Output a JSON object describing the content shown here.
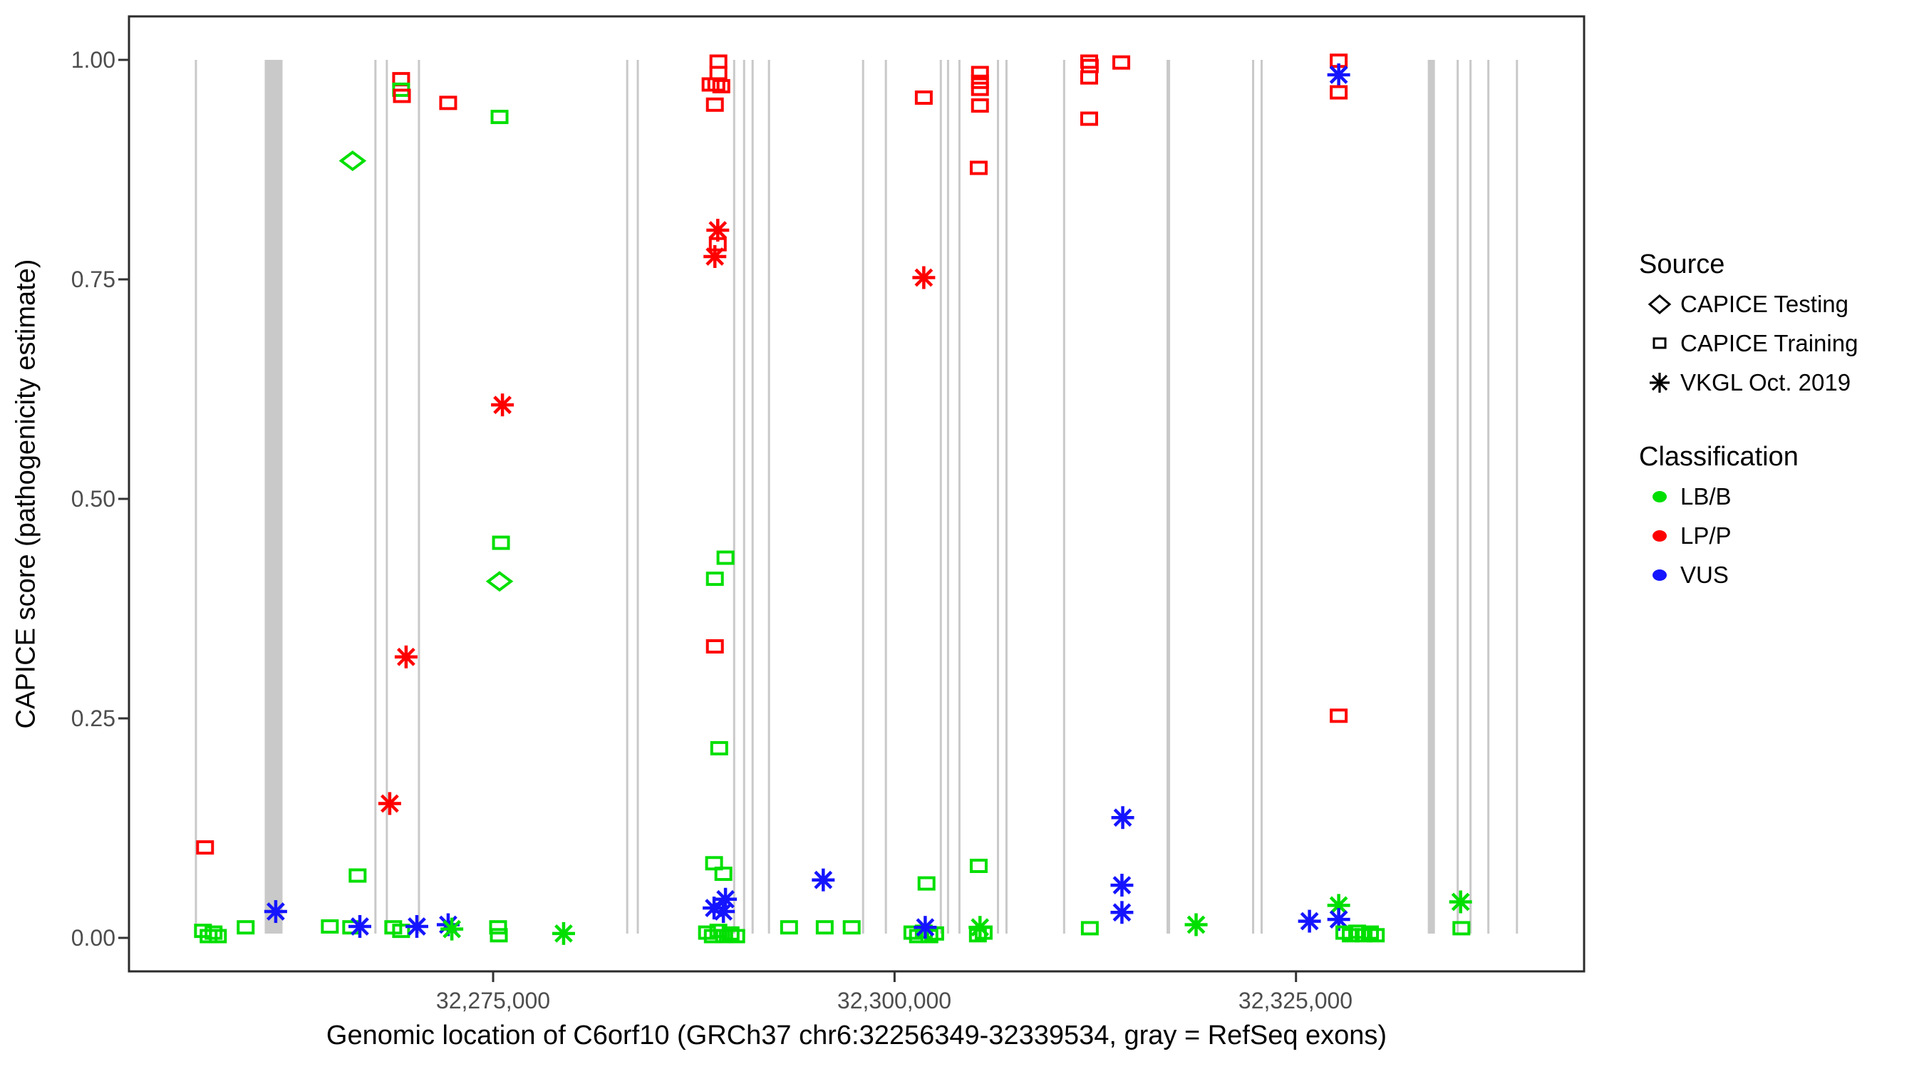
{
  "legend": {
    "source_title": "Source",
    "source_items": [
      {
        "label": "CAPICE Testing",
        "shape": "diamond"
      },
      {
        "label": "CAPICE Training",
        "shape": "square"
      },
      {
        "label": "VKGL Oct. 2019",
        "shape": "asterisk"
      }
    ],
    "classification_title": "Classification",
    "classification_items": [
      {
        "label": "LB/B",
        "class": "LB/B"
      },
      {
        "label": "LP/P",
        "class": "LP/P"
      },
      {
        "label": "VUS",
        "class": "VUS"
      }
    ]
  },
  "colors": {
    "LB/B": "#00DF00",
    "LP/P": "#FF0000",
    "VUS": "#1515FF",
    "exon": "#C9C9C9",
    "axis_text": "#4d4d4d",
    "border": "#2b2b2b"
  },
  "chart_data": {
    "type": "scatter",
    "xlabel": "Genomic location of C6orf10 (GRCh37 chr6:32256349-32339534, gray = RefSeq exons)",
    "ylabel": "CAPICE score (pathogenicity estimate)",
    "x_axis": {
      "ticks": [
        32275000,
        32300000,
        32325000
      ],
      "tick_labels": [
        "32,275,000",
        "32,300,000",
        "32,325,000"
      ],
      "range": [
        32252322,
        32342942
      ]
    },
    "y_axis": {
      "ticks": [
        0,
        0.25,
        0.5,
        0.75,
        1
      ],
      "tick_labels": [
        "0.00",
        "0.25",
        "0.50",
        "0.75",
        "1.00"
      ],
      "range": [
        0,
        1
      ]
    },
    "grid": false,
    "legend_position": "right",
    "exon_note": "gray = RefSeq exons",
    "exons": [
      {
        "pos": 32256490,
        "w": 3
      },
      {
        "pos": 32261330,
        "w": 25
      },
      {
        "pos": 32267670,
        "w": 3
      },
      {
        "pos": 32268380,
        "w": 3
      },
      {
        "pos": 32270380,
        "w": 3
      },
      {
        "pos": 32283350,
        "w": 3
      },
      {
        "pos": 32284010,
        "w": 3
      },
      {
        "pos": 32290010,
        "w": 3
      },
      {
        "pos": 32290630,
        "w": 3
      },
      {
        "pos": 32291160,
        "w": 3
      },
      {
        "pos": 32292180,
        "w": 3
      },
      {
        "pos": 32298040,
        "w": 3
      },
      {
        "pos": 32299460,
        "w": 3
      },
      {
        "pos": 32302880,
        "w": 3
      },
      {
        "pos": 32303330,
        "w": 3
      },
      {
        "pos": 32304040,
        "w": 3
      },
      {
        "pos": 32306440,
        "w": 3
      },
      {
        "pos": 32306970,
        "w": 3
      },
      {
        "pos": 32310560,
        "w": 3
      },
      {
        "pos": 32317050,
        "w": 5
      },
      {
        "pos": 32322330,
        "w": 3
      },
      {
        "pos": 32322860,
        "w": 3
      },
      {
        "pos": 32333430,
        "w": 10
      },
      {
        "pos": 32335070,
        "w": 3
      },
      {
        "pos": 32335870,
        "w": 3
      },
      {
        "pos": 32336980,
        "w": 3
      },
      {
        "pos": 32338760,
        "w": 3
      }
    ],
    "points": [
      {
        "pos": 32257060,
        "score": 0.103,
        "source": "CAPICE Training",
        "class": "LP/P"
      },
      {
        "pos": 32256930,
        "score": 0.008,
        "source": "CAPICE Training",
        "class": "LB/B"
      },
      {
        "pos": 32257280,
        "score": 0.002,
        "source": "CAPICE Training",
        "class": "LB/B"
      },
      {
        "pos": 32257590,
        "score": 0.006,
        "source": "CAPICE Training",
        "class": "LB/B"
      },
      {
        "pos": 32257860,
        "score": 0.002,
        "source": "CAPICE Training",
        "class": "LB/B"
      },
      {
        "pos": 32259590,
        "score": 0.012,
        "source": "CAPICE Training",
        "class": "LB/B"
      },
      {
        "pos": 32261460,
        "score": 0.03,
        "source": "VKGL Oct. 2019",
        "class": "VUS"
      },
      {
        "pos": 32264830,
        "score": 0.013,
        "source": "CAPICE Training",
        "class": "LB/B"
      },
      {
        "pos": 32266160,
        "score": 0.012,
        "source": "CAPICE Training",
        "class": "LB/B"
      },
      {
        "pos": 32266560,
        "score": 0.071,
        "source": "CAPICE Training",
        "class": "LB/B"
      },
      {
        "pos": 32266700,
        "score": 0.013,
        "source": "VKGL Oct. 2019",
        "class": "VUS"
      },
      {
        "pos": 32266250,
        "score": 0.885,
        "source": "CAPICE Testing",
        "class": "LB/B"
      },
      {
        "pos": 32268780,
        "score": 0.012,
        "source": "CAPICE Training",
        "class": "LB/B"
      },
      {
        "pos": 32269270,
        "score": 0.008,
        "source": "CAPICE Training",
        "class": "LB/B"
      },
      {
        "pos": 32269270,
        "score": 0.978,
        "source": "CAPICE Training",
        "class": "LP/P"
      },
      {
        "pos": 32269270,
        "score": 0.966,
        "source": "CAPICE Training",
        "class": "LB/B"
      },
      {
        "pos": 32269320,
        "score": 0.959,
        "source": "CAPICE Training",
        "class": "LP/P"
      },
      {
        "pos": 32268560,
        "score": 0.153,
        "source": "VKGL Oct. 2019",
        "class": "LP/P"
      },
      {
        "pos": 32269580,
        "score": 0.32,
        "source": "VKGL Oct. 2019",
        "class": "LP/P"
      },
      {
        "pos": 32270250,
        "score": 0.013,
        "source": "VKGL Oct. 2019",
        "class": "VUS"
      },
      {
        "pos": 32272200,
        "score": 0.951,
        "source": "CAPICE Training",
        "class": "LP/P"
      },
      {
        "pos": 32272200,
        "score": 0.015,
        "source": "VKGL Oct. 2019",
        "class": "VUS"
      },
      {
        "pos": 32272430,
        "score": 0.01,
        "source": "VKGL Oct. 2019",
        "class": "LB/B"
      },
      {
        "pos": 32275310,
        "score": 0.012,
        "source": "CAPICE Training",
        "class": "LB/B"
      },
      {
        "pos": 32275355,
        "score": 0.003,
        "source": "CAPICE Training",
        "class": "LB/B"
      },
      {
        "pos": 32275400,
        "score": 0.935,
        "source": "CAPICE Training",
        "class": "LB/B"
      },
      {
        "pos": 32275490,
        "score": 0.45,
        "source": "CAPICE Training",
        "class": "LB/B"
      },
      {
        "pos": 32275400,
        "score": 0.406,
        "source": "CAPICE Testing",
        "class": "LB/B"
      },
      {
        "pos": 32275580,
        "score": 0.607,
        "source": "VKGL Oct. 2019",
        "class": "LP/P"
      },
      {
        "pos": 32279390,
        "score": 0.005,
        "source": "VKGL Oct. 2019",
        "class": "LB/B"
      },
      {
        "pos": 32289030,
        "score": 0.998,
        "source": "CAPICE Training",
        "class": "LP/P"
      },
      {
        "pos": 32289030,
        "score": 0.985,
        "source": "CAPICE Training",
        "class": "LP/P"
      },
      {
        "pos": 32288540,
        "score": 0.972,
        "source": "CAPICE Training",
        "class": "LP/P"
      },
      {
        "pos": 32288900,
        "score": 0.972,
        "source": "CAPICE Training",
        "class": "LP/P"
      },
      {
        "pos": 32289210,
        "score": 0.97,
        "source": "CAPICE Training",
        "class": "LP/P"
      },
      {
        "pos": 32288810,
        "score": 0.949,
        "source": "CAPICE Training",
        "class": "LP/P"
      },
      {
        "pos": 32288990,
        "score": 0.806,
        "source": "VKGL Oct. 2019",
        "class": "LP/P"
      },
      {
        "pos": 32288990,
        "score": 0.79,
        "source": "CAPICE Training",
        "class": "LP/P"
      },
      {
        "pos": 32288810,
        "score": 0.776,
        "source": "VKGL Oct. 2019",
        "class": "LP/P"
      },
      {
        "pos": 32289470,
        "score": 0.433,
        "source": "CAPICE Training",
        "class": "LB/B"
      },
      {
        "pos": 32288810,
        "score": 0.409,
        "source": "CAPICE Training",
        "class": "LB/B"
      },
      {
        "pos": 32288810,
        "score": 0.332,
        "source": "CAPICE Training",
        "class": "LP/P"
      },
      {
        "pos": 32289080,
        "score": 0.216,
        "source": "CAPICE Training",
        "class": "LB/B"
      },
      {
        "pos": 32288760,
        "score": 0.085,
        "source": "CAPICE Training",
        "class": "LB/B"
      },
      {
        "pos": 32289340,
        "score": 0.073,
        "source": "CAPICE Training",
        "class": "LB/B"
      },
      {
        "pos": 32289470,
        "score": 0.044,
        "source": "VKGL Oct. 2019",
        "class": "VUS"
      },
      {
        "pos": 32288760,
        "score": 0.034,
        "source": "VKGL Oct. 2019",
        "class": "VUS"
      },
      {
        "pos": 32289340,
        "score": 0.03,
        "source": "VKGL Oct. 2019",
        "class": "VUS"
      },
      {
        "pos": 32288320,
        "score": 0.006,
        "source": "CAPICE Training",
        "class": "LB/B"
      },
      {
        "pos": 32288680,
        "score": 0.002,
        "source": "CAPICE Training",
        "class": "LB/B"
      },
      {
        "pos": 32289030,
        "score": 0.008,
        "source": "CAPICE Training",
        "class": "LB/B"
      },
      {
        "pos": 32289390,
        "score": 0.002,
        "source": "CAPICE Training",
        "class": "LB/B"
      },
      {
        "pos": 32289790,
        "score": 0.005,
        "source": "CAPICE Training",
        "class": "LB/B"
      },
      {
        "pos": 32290140,
        "score": 0.002,
        "source": "CAPICE Training",
        "class": "LB/B"
      },
      {
        "pos": 32293430,
        "score": 0.012,
        "source": "CAPICE Training",
        "class": "LB/B"
      },
      {
        "pos": 32295560,
        "score": 0.066,
        "source": "VKGL Oct. 2019",
        "class": "VUS"
      },
      {
        "pos": 32295650,
        "score": 0.012,
        "source": "CAPICE Training",
        "class": "LB/B"
      },
      {
        "pos": 32297330,
        "score": 0.012,
        "source": "CAPICE Training",
        "class": "LB/B"
      },
      {
        "pos": 32301110,
        "score": 0.006,
        "source": "CAPICE Training",
        "class": "LB/B"
      },
      {
        "pos": 32301460,
        "score": 0.002,
        "source": "CAPICE Training",
        "class": "LB/B"
      },
      {
        "pos": 32301820,
        "score": 0.007,
        "source": "CAPICE Training",
        "class": "LB/B"
      },
      {
        "pos": 32302170,
        "score": 0.002,
        "source": "CAPICE Training",
        "class": "LB/B"
      },
      {
        "pos": 32302530,
        "score": 0.005,
        "source": "CAPICE Training",
        "class": "LB/B"
      },
      {
        "pos": 32301910,
        "score": 0.012,
        "source": "VKGL Oct. 2019",
        "class": "VUS"
      },
      {
        "pos": 32301990,
        "score": 0.062,
        "source": "CAPICE Training",
        "class": "LB/B"
      },
      {
        "pos": 32301820,
        "score": 0.957,
        "source": "CAPICE Training",
        "class": "LP/P"
      },
      {
        "pos": 32301820,
        "score": 0.752,
        "source": "VKGL Oct. 2019",
        "class": "LP/P"
      },
      {
        "pos": 32305320,
        "score": 0.985,
        "source": "CAPICE Training",
        "class": "LP/P"
      },
      {
        "pos": 32305320,
        "score": 0.975,
        "source": "CAPICE Training",
        "class": "LP/P"
      },
      {
        "pos": 32305320,
        "score": 0.967,
        "source": "CAPICE Training",
        "class": "LP/P"
      },
      {
        "pos": 32305320,
        "score": 0.948,
        "source": "CAPICE Training",
        "class": "LP/P"
      },
      {
        "pos": 32305240,
        "score": 0.877,
        "source": "CAPICE Training",
        "class": "LP/P"
      },
      {
        "pos": 32305240,
        "score": 0.082,
        "source": "CAPICE Training",
        "class": "LB/B"
      },
      {
        "pos": 32305320,
        "score": 0.012,
        "source": "VKGL Oct. 2019",
        "class": "LB/B"
      },
      {
        "pos": 32305190,
        "score": 0.003,
        "source": "CAPICE Training",
        "class": "LB/B"
      },
      {
        "pos": 32305550,
        "score": 0.006,
        "source": "CAPICE Training",
        "class": "LB/B"
      },
      {
        "pos": 32312120,
        "score": 0.998,
        "source": "CAPICE Training",
        "class": "LP/P"
      },
      {
        "pos": 32312160,
        "score": 0.993,
        "source": "CAPICE Training",
        "class": "LP/P"
      },
      {
        "pos": 32312120,
        "score": 0.98,
        "source": "CAPICE Training",
        "class": "LP/P"
      },
      {
        "pos": 32312120,
        "score": 0.933,
        "source": "CAPICE Training",
        "class": "LP/P"
      },
      {
        "pos": 32314120,
        "score": 0.997,
        "source": "CAPICE Training",
        "class": "LP/P"
      },
      {
        "pos": 32314210,
        "score": 0.137,
        "source": "VKGL Oct. 2019",
        "class": "VUS"
      },
      {
        "pos": 32314160,
        "score": 0.06,
        "source": "VKGL Oct. 2019",
        "class": "VUS"
      },
      {
        "pos": 32314160,
        "score": 0.029,
        "source": "VKGL Oct. 2019",
        "class": "VUS"
      },
      {
        "pos": 32312160,
        "score": 0.011,
        "source": "CAPICE Training",
        "class": "LB/B"
      },
      {
        "pos": 32318780,
        "score": 0.015,
        "source": "VKGL Oct. 2019",
        "class": "LB/B"
      },
      {
        "pos": 32325840,
        "score": 0.019,
        "source": "VKGL Oct. 2019",
        "class": "VUS"
      },
      {
        "pos": 32327660,
        "score": 0.999,
        "source": "CAPICE Training",
        "class": "LP/P"
      },
      {
        "pos": 32327660,
        "score": 0.983,
        "source": "VKGL Oct. 2019",
        "class": "VUS"
      },
      {
        "pos": 32327660,
        "score": 0.963,
        "source": "CAPICE Training",
        "class": "LP/P"
      },
      {
        "pos": 32327660,
        "score": 0.253,
        "source": "CAPICE Training",
        "class": "LP/P"
      },
      {
        "pos": 32327660,
        "score": 0.037,
        "source": "VKGL Oct. 2019",
        "class": "LB/B"
      },
      {
        "pos": 32327660,
        "score": 0.021,
        "source": "VKGL Oct. 2019",
        "class": "VUS"
      },
      {
        "pos": 32328010,
        "score": 0.006,
        "source": "CAPICE Training",
        "class": "LB/B"
      },
      {
        "pos": 32328410,
        "score": 0.003,
        "source": "CAPICE Training",
        "class": "LB/B"
      },
      {
        "pos": 32328810,
        "score": 0.007,
        "source": "CAPICE Training",
        "class": "LB/B"
      },
      {
        "pos": 32329210,
        "score": 0.003,
        "source": "CAPICE Training",
        "class": "LB/B"
      },
      {
        "pos": 32329610,
        "score": 0.006,
        "source": "CAPICE Training",
        "class": "LB/B"
      },
      {
        "pos": 32329970,
        "score": 0.003,
        "source": "CAPICE Training",
        "class": "LB/B"
      },
      {
        "pos": 32335250,
        "score": 0.041,
        "source": "VKGL Oct. 2019",
        "class": "LB/B"
      },
      {
        "pos": 32335300,
        "score": 0.011,
        "source": "CAPICE Training",
        "class": "LB/B"
      }
    ]
  }
}
